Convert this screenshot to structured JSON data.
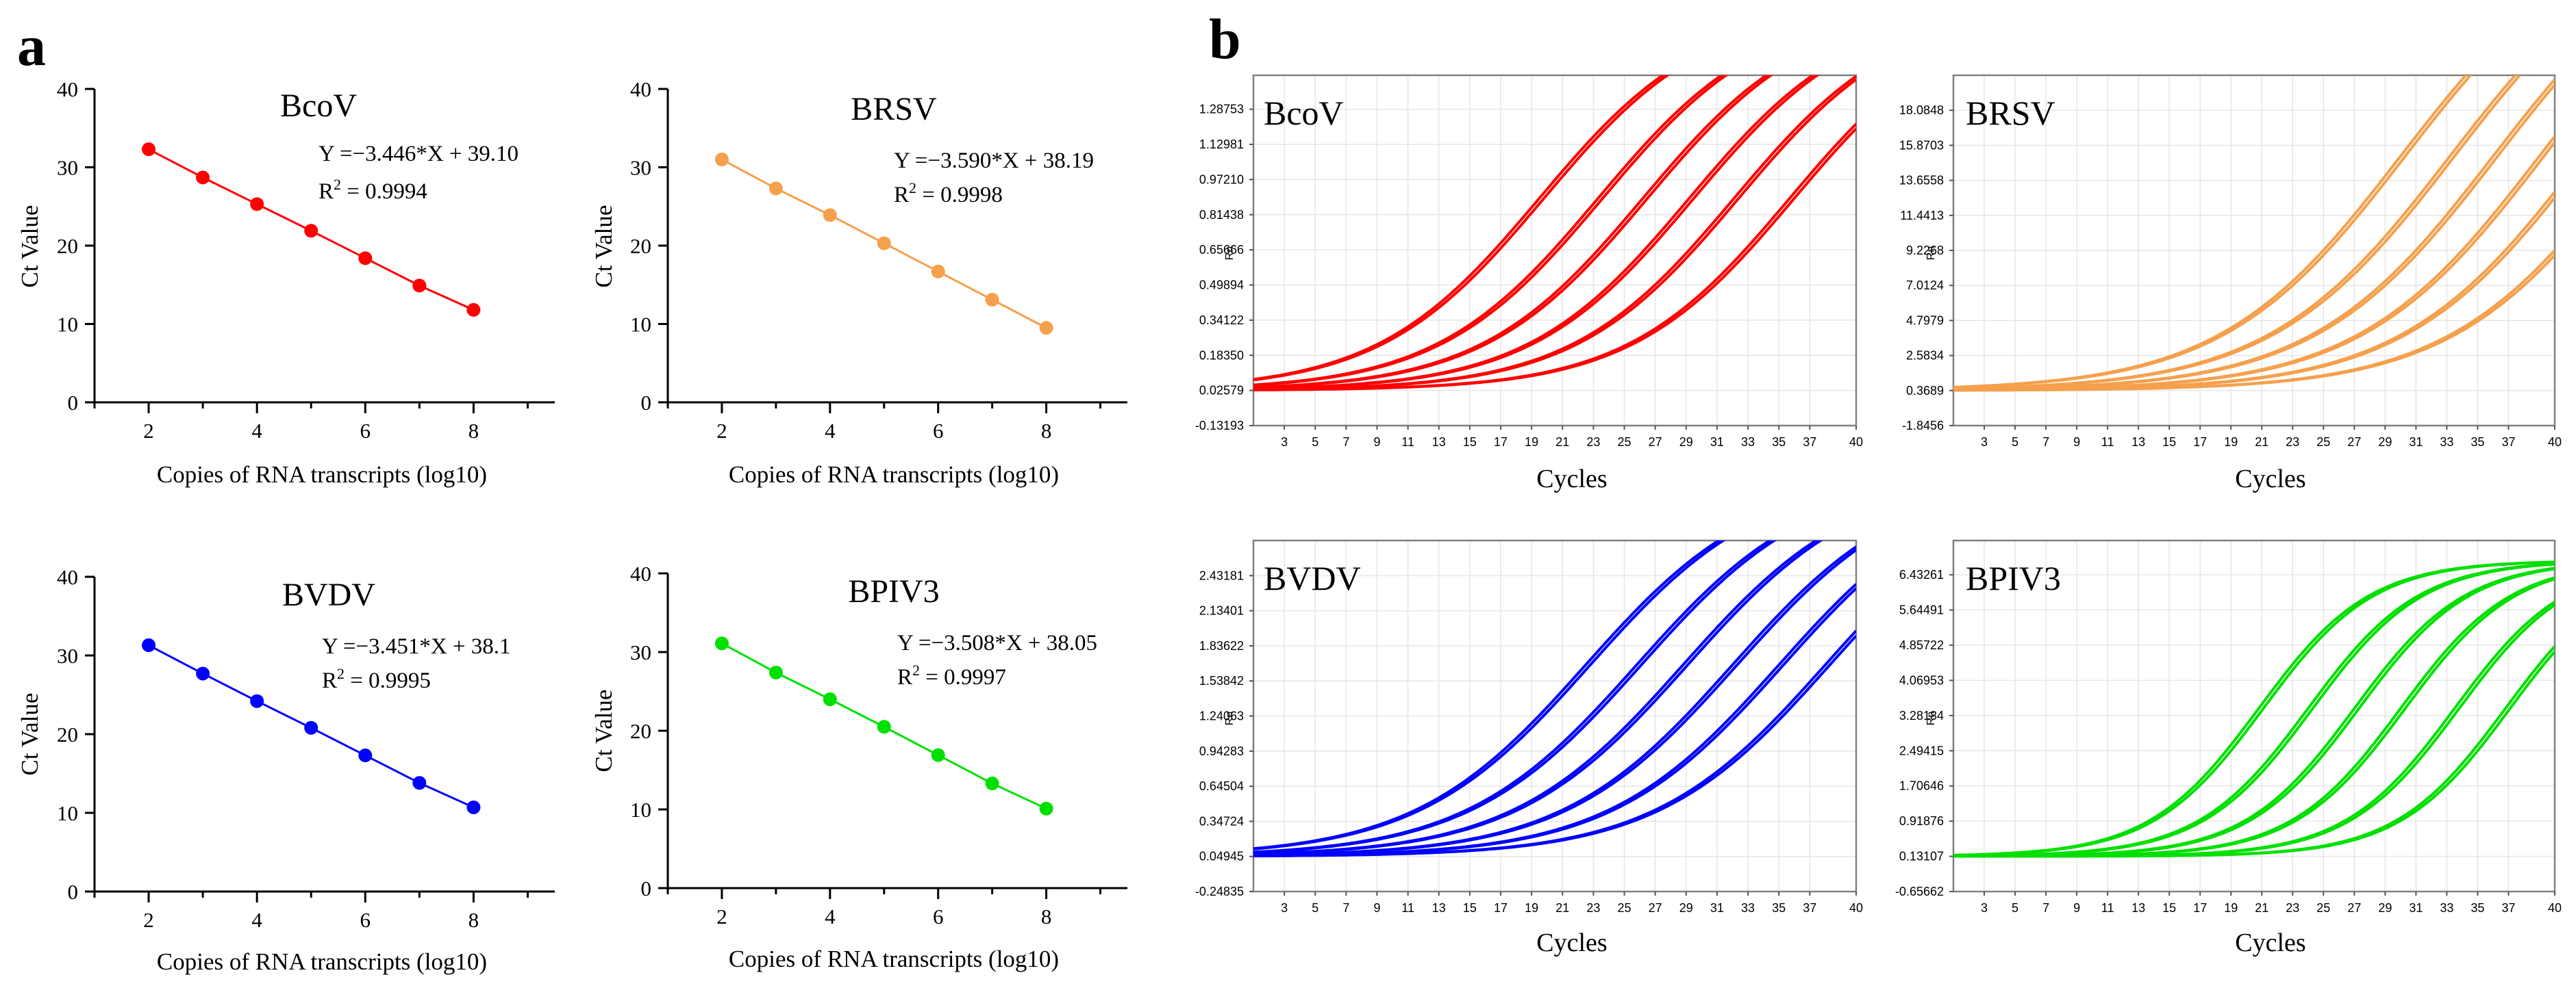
{
  "panel_labels": {
    "a": "a",
    "b": "b"
  },
  "colors": {
    "bcov": "#ff0000",
    "brsv": "#f5a04d",
    "bvdv": "#0000ff",
    "bpiv3": "#00e000",
    "axis": "#000000",
    "frame": "#808080",
    "grid": "#e6e6e6"
  },
  "chart_data": [
    {
      "type": "scatter",
      "id": "std-bcov",
      "title": "BcoV",
      "equation": "Y =−3.446*X + 39.10",
      "r2_prefix": "R",
      "r2_sup": "2",
      "r2_value": " = 0.9994",
      "xlabel": "Copies of RNA transcripts (log10)",
      "ylabel": "Ct Value",
      "xlim": [
        1,
        9.5
      ],
      "ylim": [
        0,
        40
      ],
      "xticks": [
        "2",
        "4",
        "6",
        "8"
      ],
      "yticks": [
        "0",
        "10",
        "20",
        "30",
        "40"
      ],
      "x": [
        2,
        3,
        4,
        5,
        6,
        7,
        8
      ],
      "y": [
        32.3,
        28.7,
        25.3,
        21.9,
        18.4,
        14.9,
        11.8
      ],
      "color": "#ff0000"
    },
    {
      "type": "scatter",
      "id": "std-brsv",
      "title": "BRSV",
      "equation": "Y =−3.590*X + 38.19",
      "r2_prefix": "R",
      "r2_sup": "2",
      "r2_value": " = 0.9998",
      "xlabel": "Copies of RNA transcripts (log10)",
      "ylabel": "Ct Value",
      "xlim": [
        1,
        9.5
      ],
      "ylim": [
        0,
        40
      ],
      "xticks": [
        "2",
        "4",
        "6",
        "8"
      ],
      "yticks": [
        "0",
        "10",
        "20",
        "30",
        "40"
      ],
      "x": [
        2,
        3,
        4,
        5,
        6,
        7,
        8
      ],
      "y": [
        31.0,
        27.3,
        23.9,
        20.3,
        16.7,
        13.1,
        9.5
      ],
      "color": "#f5a04d"
    },
    {
      "type": "scatter",
      "id": "std-bvdv",
      "title": "BVDV",
      "equation": "Y =−3.451*X + 38.1",
      "r2_prefix": "R",
      "r2_sup": "2",
      "r2_value": " = 0.9995",
      "xlabel": "Copies of RNA transcripts (log10)",
      "ylabel": "Ct Value",
      "xlim": [
        1,
        9.5
      ],
      "ylim": [
        0,
        40
      ],
      "xticks": [
        "2",
        "4",
        "6",
        "8"
      ],
      "yticks": [
        "0",
        "10",
        "20",
        "30",
        "40"
      ],
      "x": [
        2,
        3,
        4,
        5,
        6,
        7,
        8
      ],
      "y": [
        31.3,
        27.7,
        24.2,
        20.8,
        17.3,
        13.8,
        10.7
      ],
      "color": "#0000ff"
    },
    {
      "type": "scatter",
      "id": "std-bpiv3",
      "title": "BPIV3",
      "equation": "Y =−3.508*X + 38.05",
      "r2_prefix": "R",
      "r2_sup": "2",
      "r2_value": " = 0.9997",
      "xlabel": "Copies of RNA transcripts (log10)",
      "ylabel": "Ct Value",
      "xlim": [
        1,
        9.5
      ],
      "ylim": [
        0,
        40
      ],
      "xticks": [
        "2",
        "4",
        "6",
        "8"
      ],
      "yticks": [
        "0",
        "10",
        "20",
        "30",
        "40"
      ],
      "x": [
        2,
        3,
        4,
        5,
        6,
        7,
        8
      ],
      "y": [
        31.1,
        27.4,
        24.0,
        20.5,
        16.9,
        13.3,
        10.1
      ],
      "color": "#00e000"
    },
    {
      "type": "line",
      "id": "amp-bcov",
      "title": "BcoV",
      "xlabel": "Cycles",
      "ylabel": "Rn",
      "xlim": [
        1,
        40
      ],
      "ylim": [
        -0.13193,
        1.44
      ],
      "xticks": [
        "3",
        "5",
        "7",
        "9",
        "11",
        "13",
        "15",
        "17",
        "19",
        "21",
        "23",
        "25",
        "27",
        "29",
        "31",
        "33",
        "35",
        "37",
        "40"
      ],
      "yticks": [
        "-0.13193",
        "0.02579",
        "0.18350",
        "0.34122",
        "0.49894",
        "0.65666",
        "0.81438",
        "0.97210",
        "1.12981",
        "1.28753"
      ],
      "baseline": 0.02579,
      "plateau": 1.75,
      "slope": 0.19,
      "midpoints": [
        19.5,
        19.8,
        23.3,
        23.6,
        26.2,
        26.5,
        29.2,
        29.5,
        32.1,
        32.4,
        35.7,
        36.0
      ],
      "color": "#ff0000"
    },
    {
      "type": "line",
      "id": "amp-brsv",
      "title": "BRSV",
      "xlabel": "Cycles",
      "ylabel": "Rn",
      "xlim": [
        1,
        40
      ],
      "ylim": [
        -1.8456,
        20.3
      ],
      "xticks": [
        "3",
        "5",
        "7",
        "9",
        "11",
        "13",
        "15",
        "17",
        "19",
        "21",
        "23",
        "25",
        "27",
        "29",
        "31",
        "33",
        "35",
        "37",
        "40"
      ],
      "yticks": [
        "-1.8456",
        "0.3689",
        "2.5834",
        "4.7979",
        "7.0124",
        "9.2268",
        "11.4413",
        "13.6558",
        "15.8703",
        "18.0848"
      ],
      "baseline": 0.3689,
      "plateau": 30.0,
      "slope": 0.17,
      "midpoints": [
        30.0,
        30.3,
        33.2,
        33.5,
        36.0,
        36.3,
        39.0,
        39.3,
        41.8,
        42.1,
        45.0,
        45.3
      ],
      "color": "#f5a04d"
    },
    {
      "type": "line",
      "id": "amp-bvdv",
      "title": "BVDV",
      "xlabel": "Cycles",
      "ylabel": "Rn",
      "xlim": [
        1,
        40
      ],
      "ylim": [
        -0.24835,
        2.73
      ],
      "xticks": [
        "3",
        "5",
        "7",
        "9",
        "11",
        "13",
        "15",
        "17",
        "19",
        "21",
        "23",
        "25",
        "27",
        "29",
        "31",
        "33",
        "35",
        "37",
        "40"
      ],
      "yticks": [
        "-0.24835",
        "0.04945",
        "0.34724",
        "0.64504",
        "0.94283",
        "1.24063",
        "1.53842",
        "1.83622",
        "2.13401",
        "2.43181"
      ],
      "baseline": 0.04945,
      "plateau": 3.3,
      "slope": 0.18,
      "midpoints": [
        22.5,
        22.8,
        25.8,
        26.1,
        28.8,
        29.1,
        32.0,
        32.3,
        35.0,
        35.3,
        38.0,
        38.3
      ],
      "color": "#0000ff"
    },
    {
      "type": "line",
      "id": "amp-bpiv3",
      "title": "BPIV3",
      "xlabel": "Cycles",
      "ylabel": "Rn",
      "xlim": [
        1,
        40
      ],
      "ylim": [
        -0.65662,
        7.2
      ],
      "xticks": [
        "3",
        "5",
        "7",
        "9",
        "11",
        "13",
        "15",
        "17",
        "19",
        "21",
        "23",
        "25",
        "27",
        "29",
        "31",
        "33",
        "35",
        "37",
        "40"
      ],
      "yticks": [
        "-0.65662",
        "0.13107",
        "0.91876",
        "1.70646",
        "2.49415",
        "3.28184",
        "4.06953",
        "4.85722",
        "5.64491",
        "6.43261"
      ],
      "baseline": 0.13107,
      "plateau": 6.75,
      "slope": 0.28,
      "midpoints": [
        20.8,
        21.1,
        24.0,
        24.3,
        27.0,
        27.3,
        30.0,
        30.3,
        33.5,
        33.8,
        36.8,
        37.1
      ],
      "color": "#00e000"
    }
  ]
}
